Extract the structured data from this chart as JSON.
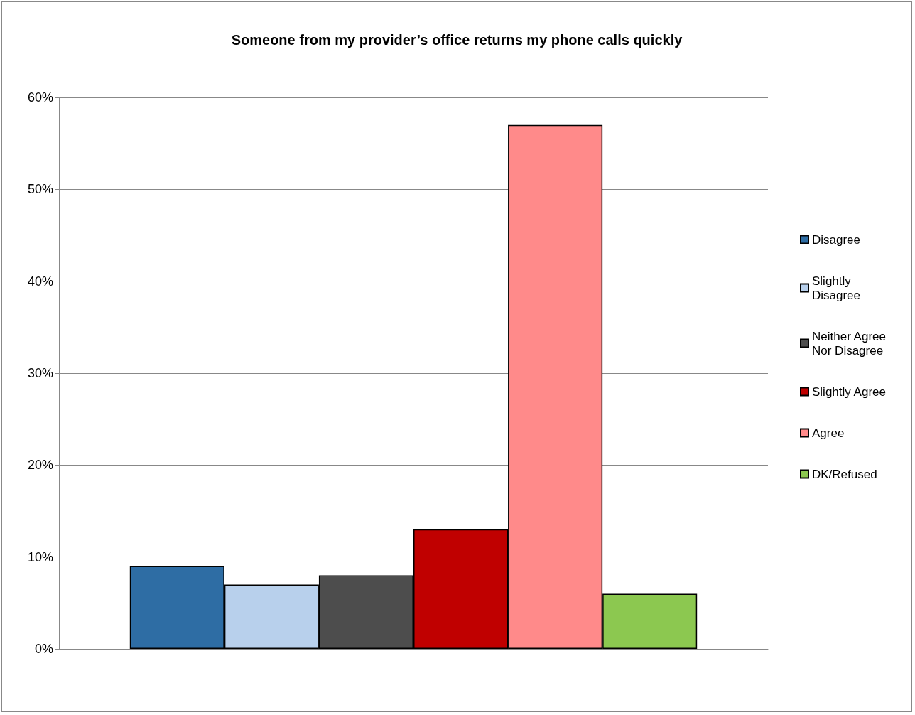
{
  "chart_data": {
    "type": "bar",
    "title": "Someone from my provider’s office returns my phone calls quickly",
    "categories": [
      null
    ],
    "series": [
      {
        "name": "Disagree",
        "color": "#2e6da4",
        "values": [
          9
        ]
      },
      {
        "name": "Slightly Disagree",
        "color": "#b8d0ec",
        "values": [
          7
        ]
      },
      {
        "name": "Neither Agree Nor Disagree",
        "color": "#4d4d4d",
        "values": [
          8
        ]
      },
      {
        "name": "Slightly Agree",
        "color": "#c00000",
        "values": [
          13
        ]
      },
      {
        "name": "Agree",
        "color": "#ff8a8a",
        "values": [
          57
        ]
      },
      {
        "name": "DK/Refused",
        "color": "#8cc850",
        "values": [
          6
        ]
      }
    ],
    "ylim": [
      0,
      60
    ],
    "yticks": [
      {
        "value": 0,
        "label": "0%"
      },
      {
        "value": 10,
        "label": "10%"
      },
      {
        "value": 20,
        "label": "20%"
      },
      {
        "value": 30,
        "label": "30%"
      },
      {
        "value": 40,
        "label": "40%"
      },
      {
        "value": 50,
        "label": "50%"
      },
      {
        "value": 60,
        "label": "60%"
      }
    ],
    "grid": "y",
    "legend": "right"
  }
}
